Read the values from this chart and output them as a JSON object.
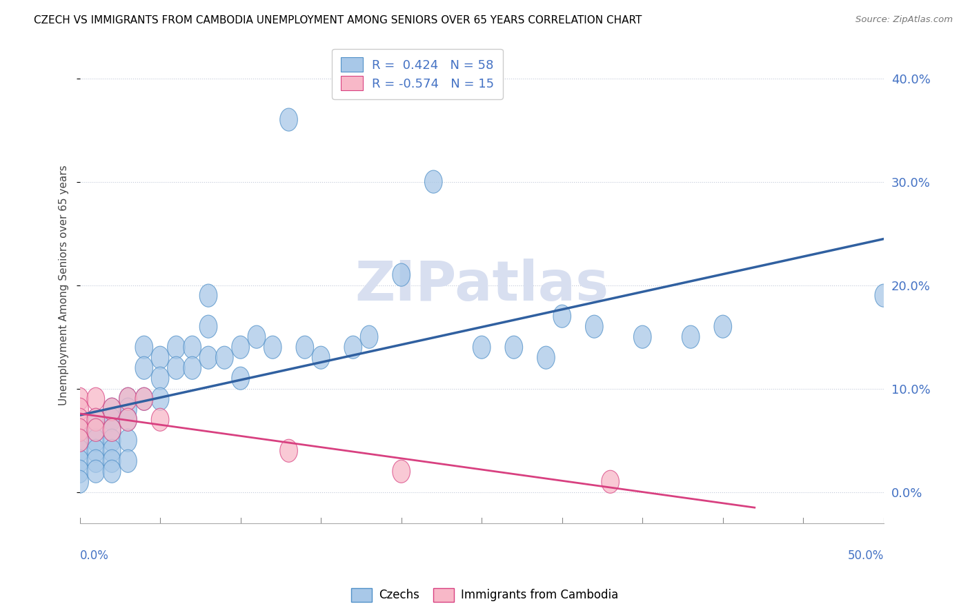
{
  "title": "CZECH VS IMMIGRANTS FROM CAMBODIA UNEMPLOYMENT AMONG SENIORS OVER 65 YEARS CORRELATION CHART",
  "source": "Source: ZipAtlas.com",
  "ylabel": "Unemployment Among Seniors over 65 years",
  "yticks_labels": [
    "0.0%",
    "10.0%",
    "20.0%",
    "30.0%",
    "40.0%"
  ],
  "ytick_vals": [
    0.0,
    0.1,
    0.2,
    0.3,
    0.4
  ],
  "xlim": [
    0.0,
    0.5
  ],
  "ylim": [
    -0.03,
    0.43
  ],
  "blue_color": "#a8c8e8",
  "blue_edge": "#5090c8",
  "pink_color": "#f8b8c8",
  "pink_edge": "#d84080",
  "line_blue": "#3060a0",
  "line_pink": "#d84080",
  "watermark_color": "#d8dff0",
  "czechs_x": [
    0.0,
    0.0,
    0.0,
    0.0,
    0.0,
    0.0,
    0.01,
    0.01,
    0.01,
    0.01,
    0.01,
    0.01,
    0.02,
    0.02,
    0.02,
    0.02,
    0.02,
    0.02,
    0.02,
    0.03,
    0.03,
    0.03,
    0.03,
    0.03,
    0.04,
    0.04,
    0.04,
    0.05,
    0.05,
    0.05,
    0.06,
    0.06,
    0.07,
    0.07,
    0.08,
    0.08,
    0.08,
    0.09,
    0.1,
    0.1,
    0.11,
    0.12,
    0.13,
    0.14,
    0.15,
    0.17,
    0.18,
    0.2,
    0.22,
    0.25,
    0.27,
    0.29,
    0.3,
    0.32,
    0.35,
    0.38,
    0.4,
    0.5
  ],
  "czechs_y": [
    0.06,
    0.05,
    0.04,
    0.03,
    0.02,
    0.01,
    0.07,
    0.06,
    0.05,
    0.04,
    0.03,
    0.02,
    0.08,
    0.07,
    0.06,
    0.05,
    0.04,
    0.03,
    0.02,
    0.09,
    0.08,
    0.07,
    0.05,
    0.03,
    0.14,
    0.12,
    0.09,
    0.13,
    0.11,
    0.09,
    0.14,
    0.12,
    0.14,
    0.12,
    0.19,
    0.16,
    0.13,
    0.13,
    0.14,
    0.11,
    0.15,
    0.14,
    0.36,
    0.14,
    0.13,
    0.14,
    0.15,
    0.21,
    0.3,
    0.14,
    0.14,
    0.13,
    0.17,
    0.16,
    0.15,
    0.15,
    0.16,
    0.19
  ],
  "cambodia_x": [
    0.0,
    0.0,
    0.0,
    0.0,
    0.0,
    0.01,
    0.01,
    0.01,
    0.02,
    0.02,
    0.03,
    0.03,
    0.04,
    0.05,
    0.13,
    0.2,
    0.33
  ],
  "cambodia_y": [
    0.09,
    0.08,
    0.07,
    0.06,
    0.05,
    0.09,
    0.07,
    0.06,
    0.08,
    0.06,
    0.09,
    0.07,
    0.09,
    0.07,
    0.04,
    0.02,
    0.01
  ]
}
